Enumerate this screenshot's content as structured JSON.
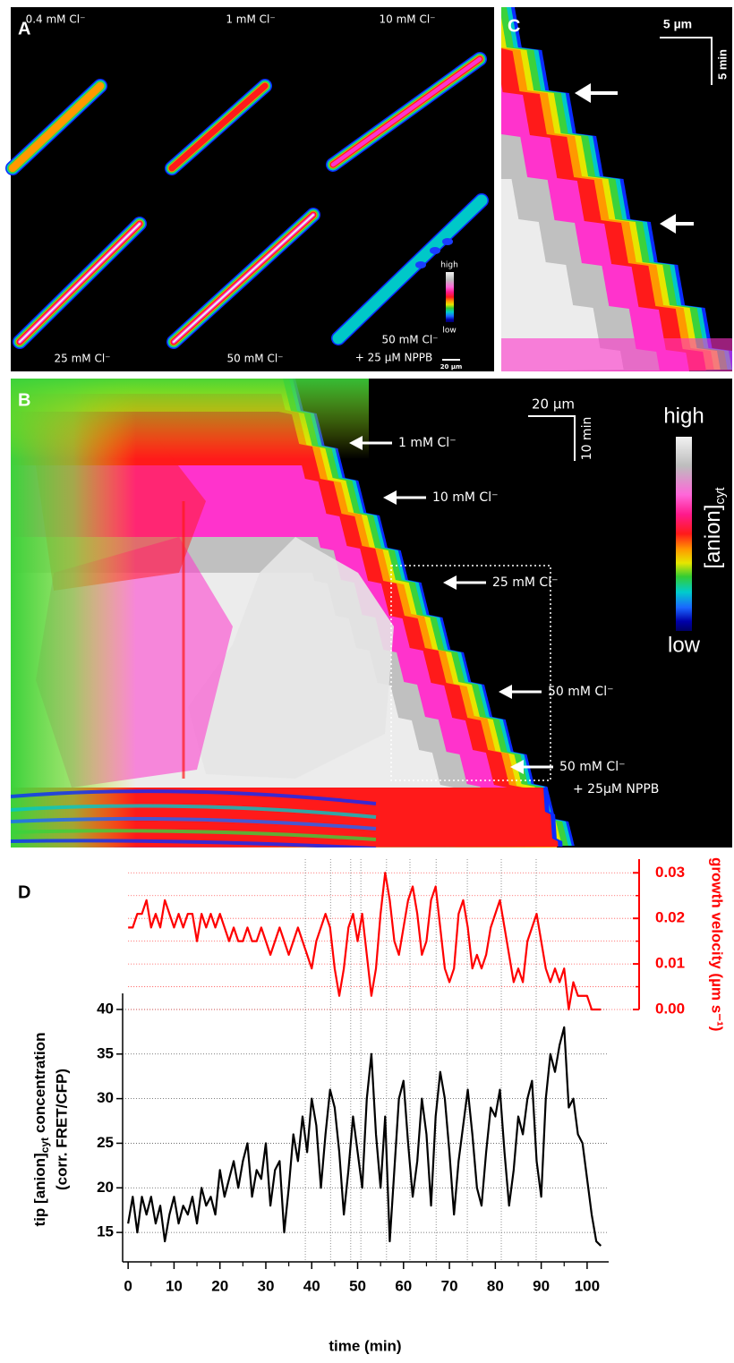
{
  "panel_a": {
    "label": "A",
    "conditions": [
      "0.4 mM Cl⁻",
      "1 mM Cl⁻",
      "10 mM Cl⁻",
      "25 mM Cl⁻",
      "50 mM Cl⁻",
      "50 mM Cl⁻"
    ],
    "condition_extra": "+ 25 µM NPPB",
    "colorbar": {
      "high": "high",
      "low": "low"
    },
    "scale_bar": "20 µm"
  },
  "panel_b": {
    "label": "B",
    "arrows": [
      "1 mM Cl⁻",
      "10 mM Cl⁻",
      "25 mM Cl⁻",
      "50 mM Cl⁻",
      "50 mM Cl⁻"
    ],
    "arrow_extra": "+ 25µM NPPB",
    "scale_x": "20 µm",
    "scale_y": "10 min",
    "colorbar": {
      "high": "high",
      "low": "low",
      "quantity": "[anion]",
      "quantity_sub": "cyt"
    }
  },
  "panel_c": {
    "label": "C",
    "scale_x": "5 µm",
    "scale_y": "5 min"
  },
  "chart_data": {
    "type": "line",
    "label": "D",
    "xlabel": "time (min)",
    "ylabel": {
      "line1": "tip [anion]",
      "line1_sub": "cyt",
      "line1_rest": "concentration",
      "line2": "(corr. FRET/CFP)"
    },
    "y2label": "growth velocity (µm s⁻¹)",
    "x": [
      0,
      1,
      2,
      3,
      4,
      5,
      6,
      7,
      8,
      9,
      10,
      11,
      12,
      13,
      14,
      15,
      16,
      17,
      18,
      19,
      20,
      21,
      22,
      23,
      24,
      25,
      26,
      27,
      28,
      29,
      30,
      31,
      32,
      33,
      34,
      35,
      36,
      37,
      38,
      39,
      40,
      41,
      42,
      43,
      44,
      45,
      46,
      47,
      48,
      49,
      50,
      51,
      52,
      53,
      54,
      55,
      56,
      57,
      58,
      59,
      60,
      61,
      62,
      63,
      64,
      65,
      66,
      67,
      68,
      69,
      70,
      71,
      72,
      73,
      74,
      75,
      76,
      77,
      78,
      79,
      80,
      81,
      82,
      83,
      84,
      85,
      86,
      87,
      88,
      89,
      90,
      91,
      92,
      93,
      94,
      95,
      96,
      97,
      98,
      99,
      100,
      101,
      102,
      103
    ],
    "series": [
      {
        "color": "#000000",
        "values": [
          16,
          19,
          15,
          19,
          17,
          19,
          16,
          18,
          14,
          17,
          19,
          16,
          18,
          17,
          19,
          16,
          20,
          18,
          19,
          17,
          22,
          19,
          21,
          23,
          20,
          23,
          25,
          19,
          22,
          21,
          25,
          18,
          22,
          23,
          15,
          20,
          26,
          23,
          28,
          24,
          30,
          27,
          20,
          26,
          31,
          29,
          24,
          17,
          22,
          28,
          24,
          20,
          30,
          35,
          26,
          20,
          28,
          14,
          22,
          30,
          32,
          25,
          19,
          23,
          30,
          26,
          18,
          28,
          33,
          30,
          24,
          17,
          23,
          27,
          31,
          26,
          20,
          18,
          24,
          29,
          28,
          31,
          24,
          18,
          22,
          28,
          26,
          30,
          32,
          23,
          19,
          30,
          35,
          33,
          36,
          38,
          29,
          30,
          26,
          25,
          21,
          17,
          14,
          13.5
        ]
      },
      {
        "color": "#ff0000",
        "axis": "y2",
        "values": [
          0.018,
          0.018,
          0.021,
          0.021,
          0.024,
          0.018,
          0.021,
          0.018,
          0.024,
          0.021,
          0.018,
          0.021,
          0.018,
          0.021,
          0.021,
          0.015,
          0.021,
          0.018,
          0.021,
          0.018,
          0.021,
          0.018,
          0.015,
          0.018,
          0.015,
          0.015,
          0.018,
          0.015,
          0.015,
          0.018,
          0.015,
          0.012,
          0.015,
          0.018,
          0.015,
          0.012,
          0.015,
          0.018,
          0.015,
          0.012,
          0.009,
          0.015,
          0.018,
          0.021,
          0.018,
          0.009,
          0.003,
          0.009,
          0.018,
          0.021,
          0.015,
          0.021,
          0.012,
          0.003,
          0.009,
          0.021,
          0.03,
          0.024,
          0.015,
          0.012,
          0.018,
          0.024,
          0.027,
          0.021,
          0.012,
          0.015,
          0.024,
          0.027,
          0.018,
          0.009,
          0.006,
          0.009,
          0.021,
          0.024,
          0.018,
          0.009,
          0.012,
          0.009,
          0.012,
          0.018,
          0.021,
          0.024,
          0.018,
          0.012,
          0.006,
          0.009,
          0.006,
          0.015,
          0.018,
          0.021,
          0.015,
          0.009,
          0.006,
          0.009,
          0.006,
          0.009,
          0,
          0.006,
          0.003,
          0.003,
          0.003,
          0,
          0,
          0
        ]
      }
    ],
    "xlim": [
      -1.2,
      104.7
    ],
    "xticks": [
      0,
      10,
      20,
      30,
      40,
      50,
      60,
      70,
      80,
      90,
      100
    ],
    "xminorticks": [
      5,
      15,
      25,
      35,
      45,
      55,
      65,
      75,
      85,
      95
    ],
    "ylim": [
      11.7,
      41.8
    ],
    "yticks": [
      15,
      20,
      25,
      30,
      35,
      40
    ],
    "y2lim": [
      0,
      0.033
    ],
    "y2ticks": [
      {
        "value": 0,
        "label": "0.00"
      },
      {
        "value": 0.01,
        "label": "0.01"
      },
      {
        "value": 0.02,
        "label": "0.02"
      },
      {
        "value": 0.03,
        "label": "0.03"
      }
    ],
    "y2minorgrid": [
      0.005,
      0.015,
      0.025
    ],
    "vlines": [
      38.6,
      44.1,
      48.5,
      50.7,
      56.3,
      61.4,
      67.1,
      73.9,
      81.3,
      88.9
    ],
    "grid": true
  }
}
